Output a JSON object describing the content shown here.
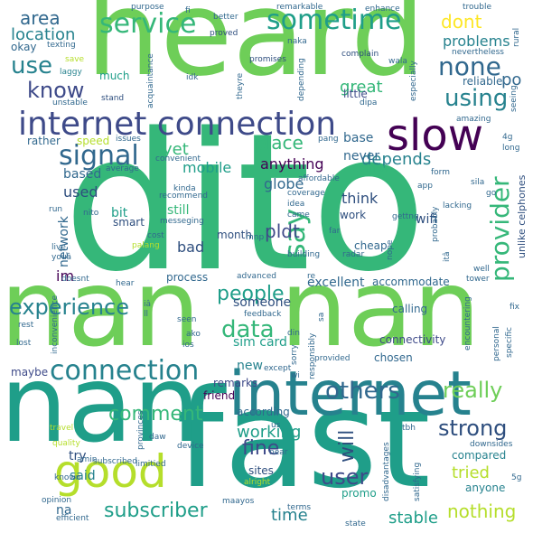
{
  "palette": {
    "purple": "#440154",
    "indigo": "#3e4a89",
    "blue": "#31688e",
    "teal": "#26828e",
    "green": "#1f9e89",
    "mint": "#35b779",
    "lime": "#6ece58",
    "yellowgreen": "#b5de2b",
    "yellow": "#fde725",
    "navy": "#2e4e7e"
  },
  "words": {
    "dito": "dito",
    "heard": "heard",
    "nan_1": "nan",
    "nan_2": "nan",
    "nan_3": "nan",
    "fast": "fast",
    "internet": "internet",
    "internet_connection": "internet connection",
    "slow": "slow",
    "good": "good",
    "connection": "connection",
    "signal": "signal",
    "service": "service",
    "sometime": "sometime",
    "none": "none",
    "use": "use",
    "know": "know",
    "using": "using",
    "area": "area",
    "location": "location",
    "dont": "dont",
    "problems": "problems",
    "po": "po",
    "great": "great",
    "reliable": "reliable",
    "experience": "experience",
    "provider": "provider",
    "say": "say",
    "data": "data",
    "people": "people",
    "place": "place",
    "depends": "depends",
    "yet": "yet",
    "mobile": "mobile",
    "anything": "anything",
    "comes": "comes",
    "never": "never",
    "base": "base",
    "based": "based",
    "think": "think",
    "used": "used",
    "globe": "globe",
    "bit": "bit",
    "still": "still",
    "pldt": "pldt",
    "wifi": "wifi",
    "network": "network",
    "bad": "bad",
    "im": "im",
    "someone": "someone",
    "excellent": "excellent",
    "accommodate": "accommodate",
    "sim_card": "sim card",
    "connectivity": "connectivity",
    "others": "others",
    "really": "really",
    "comment": "comment",
    "strong": "strong",
    "working": "working",
    "fine": "fine",
    "will": "will",
    "user": "user",
    "try": "try",
    "said": "said",
    "tried": "tried",
    "subscriber": "subscriber",
    "time": "time",
    "stable": "stable",
    "nothing": "nothing",
    "na": "na",
    "sites": "sites",
    "promo": "promo",
    "anyone": "anyone",
    "compared": "compared",
    "friend": "friend",
    "according": "according",
    "remarks": "remarks",
    "new": "new",
    "chosen": "chosen",
    "maybe": "maybe",
    "rather": "rather",
    "speed": "speed",
    "okay": "okay",
    "much": "much",
    "texting": "texting",
    "save": "save",
    "laggy": "laggy",
    "unstable": "unstable",
    "purpose": "purpose",
    "fi": "fi",
    "better": "better",
    "proved": "proved",
    "remarkable": "remarkable",
    "enhance": "enhance",
    "trouble": "trouble",
    "naka": "naka",
    "nevertheless": "nevertheless",
    "complain": "complain",
    "promises": "promises",
    "idk": "idk",
    "wala": "wala",
    "especially": "especially",
    "little": "little",
    "depending": "depending",
    "stand": "stand",
    "acquaintance": "acquaintance",
    "theyre": "theyre",
    "dipa": "dipa",
    "seeing": "seeing",
    "amazing": "amazing",
    "rural": "rural",
    "issues": "issues",
    "convenient": "convenient",
    "pang": "pang",
    "affordable": "affordable",
    "average": "average",
    "coverage": "coverage",
    "4g": "4g",
    "long": "long",
    "form": "form",
    "sila": "sila",
    "app": "app",
    "go": "go",
    "kinda": "kinda",
    "recommend": "recommend",
    "unlike_celphones": "unlike celphones",
    "lacking": "lacking",
    "gettng": "gettng",
    "probably": "probably",
    "nito": "nito",
    "smart": "smart",
    "idea": "idea",
    "run": "run",
    "messeging": "messeging",
    "came": "came",
    "work": "work",
    "month": "month",
    "cost": "cost",
    "mnp": "mnp",
    "cheap": "cheap",
    "palang": "palang",
    "far": "far",
    "live": "live",
    "you": "youâ",
    "process": "process",
    "ita": "itâ",
    "radar": "radar",
    "nope": "nope",
    "building": "building",
    "doesnt": "doesnt",
    "advanced": "advanced",
    "re": "re",
    "well": "well",
    "tower": "tower",
    "hear": "hear",
    "ia": "iâ",
    "ll": "ll",
    "sa": "sa",
    "calling": "calling",
    "fix": "fix",
    "feedback": "feedback",
    "seen": "seen",
    "rest": "rest",
    "inconvenience": "inconvenience",
    "din": "din",
    "encountering": "encountering",
    "personal": "personal",
    "specific": "specific",
    "ako": "ako",
    "lost": "lost",
    "ios": "ios",
    "sorry": "sorry",
    "responsibly": "responsibly",
    "provided": "provided",
    "except": "except",
    "wi": "wi",
    "provinces": "provinces",
    "travel": "travel",
    "us": "us",
    "daw": "daw",
    "device": "device",
    "near": "near",
    "tbh": "tbh",
    "downsides": "downsides",
    "quality": "quality",
    "amin": "amin",
    "subscribed": "subscribed",
    "limitied": "limitied",
    "alright": "alright",
    "disadvantages": "disadvantages",
    "satisfying": "satisfying",
    "5g": "5g",
    "known": "known",
    "opinion": "opinion",
    "maayos": "maayos",
    "terms": "terms",
    "efficient": "efficient",
    "state": "state"
  }
}
